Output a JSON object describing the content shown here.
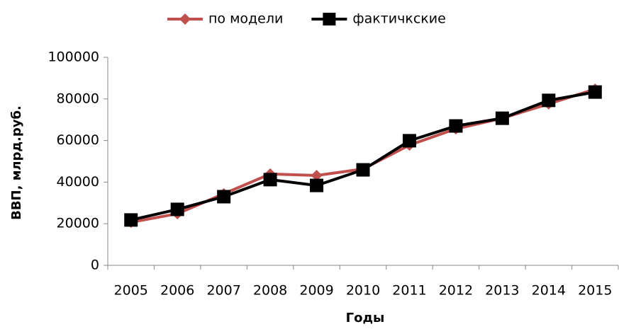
{
  "chart_data": {
    "type": "line",
    "x_label": "Годы",
    "y_label": "ВВП, млрд.руб.",
    "categories": [
      "2005",
      "2006",
      "2007",
      "2008",
      "2009",
      "2010",
      "2011",
      "2012",
      "2013",
      "2014",
      "2015"
    ],
    "series": [
      {
        "name": "по модели",
        "color": "#c0504d",
        "marker": "diamond",
        "values": [
          20700,
          24800,
          34400,
          43900,
          43200,
          46300,
          57800,
          65600,
          70700,
          77600,
          84700
        ]
      },
      {
        "name": "фактичкские",
        "color": "#000000",
        "marker": "square",
        "values": [
          21800,
          26900,
          33000,
          41200,
          38400,
          45900,
          59900,
          67000,
          70700,
          79300,
          83300
        ]
      }
    ],
    "ylim": [
      0,
      100000
    ],
    "yticks": [
      0,
      20000,
      40000,
      60000,
      80000,
      100000
    ],
    "grid": false,
    "legend": "top"
  }
}
